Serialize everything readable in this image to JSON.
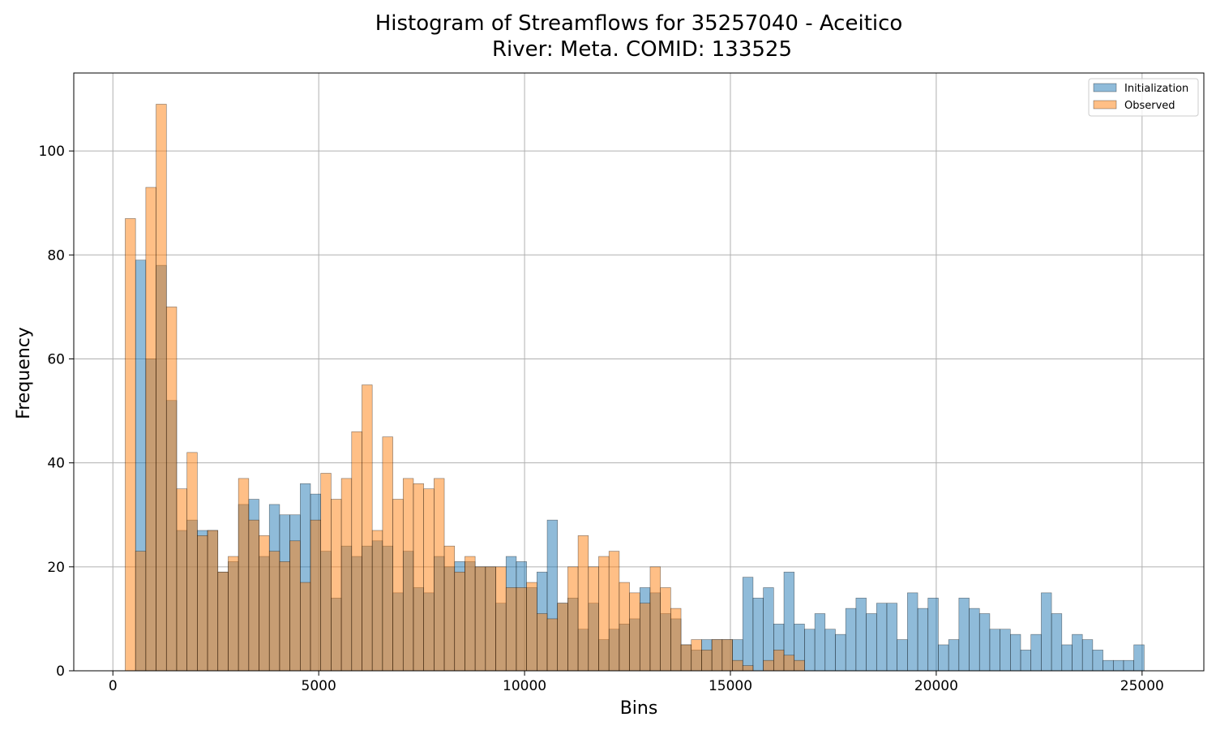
{
  "chart_data": {
    "type": "bar",
    "title": "Histogram of Streamflows for 35257040 - Aceitico",
    "subtitle": "River: Meta. COMID: 133525",
    "xlabel": "Bins",
    "ylabel": "Frequency",
    "xlim": [
      -950,
      26500
    ],
    "ylim": [
      0,
      115
    ],
    "xticks": [
      0,
      5000,
      10000,
      15000,
      20000,
      25000
    ],
    "yticks": [
      0,
      20,
      40,
      60,
      80,
      100
    ],
    "bin_width": 250,
    "grid": true,
    "legend": "top-right",
    "series": [
      {
        "name": "Initialization",
        "color": "#1f77b4",
        "bin_start": 550,
        "values": [
          79,
          60,
          78,
          52,
          27,
          29,
          27,
          27,
          19,
          21,
          32,
          33,
          22,
          32,
          30,
          30,
          36,
          34,
          23,
          14,
          24,
          22,
          24,
          25,
          24,
          15,
          23,
          16,
          15,
          22,
          20,
          21,
          21,
          20,
          20,
          13,
          22,
          21,
          16,
          19,
          29,
          13,
          14,
          8,
          13,
          6,
          8,
          9,
          10,
          16,
          15,
          11,
          10,
          5,
          4,
          6,
          6,
          6,
          6,
          18,
          14,
          16,
          9,
          19,
          9,
          8,
          11,
          8,
          7,
          12,
          14,
          11,
          13,
          13,
          6,
          15,
          12,
          14,
          5,
          6,
          14,
          12,
          11,
          8,
          8,
          7,
          4,
          7,
          15,
          11,
          5,
          7,
          6,
          4,
          2,
          2,
          2,
          5
        ],
        "opacity": 0.5
      },
      {
        "name": "Observed",
        "color": "#ff7f0e",
        "bin_start": 300,
        "values": [
          87,
          23,
          93,
          109,
          70,
          35,
          42,
          26,
          27,
          19,
          22,
          37,
          29,
          26,
          23,
          21,
          25,
          17,
          29,
          38,
          33,
          37,
          46,
          55,
          27,
          45,
          33,
          37,
          36,
          35,
          37,
          24,
          19,
          22,
          20,
          20,
          20,
          16,
          16,
          17,
          11,
          10,
          13,
          20,
          26,
          20,
          22,
          23,
          17,
          15,
          13,
          20,
          16,
          12,
          5,
          6,
          4,
          6,
          6,
          2,
          1,
          0,
          2,
          4,
          3,
          2
        ],
        "opacity": 0.5
      }
    ]
  }
}
